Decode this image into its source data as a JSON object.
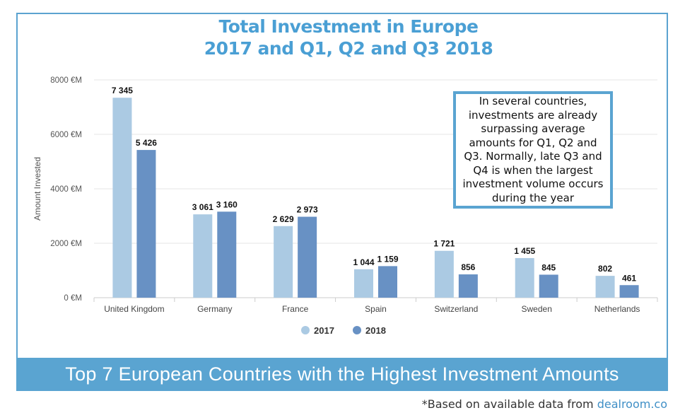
{
  "header": {
    "title_line1": "Total Investment in Europe",
    "title_line2": "2017 and Q1, Q2 and Q3 2018"
  },
  "callout": {
    "text": "In several countries, investments are already surpassing average amounts for Q1, Q2 and Q3. Normally, late Q3 and Q4 is when the largest investment volume occurs during the year"
  },
  "banner": {
    "text": "Top 7 European Countries with the Highest Investment Amounts"
  },
  "footnote": {
    "prefix": "*Based on available data from ",
    "brand": "dealroom.co"
  },
  "colors": {
    "s2017": "#abcae3",
    "s2018": "#6891c4",
    "accent": "#5aa4d1"
  },
  "chart_data": {
    "type": "bar",
    "categories": [
      "United Kingdom",
      "Germany",
      "France",
      "Spain",
      "Switzerland",
      "Sweden",
      "Netherlands"
    ],
    "series": [
      {
        "name": "2017",
        "values": [
          7345,
          3061,
          2629,
          1044,
          1721,
          1455,
          802
        ],
        "labels": [
          "7 345",
          "3 061",
          "2 629",
          "1 044",
          "1 721",
          "1 455",
          "802"
        ]
      },
      {
        "name": "2018",
        "values": [
          5426,
          3160,
          2973,
          1159,
          856,
          845,
          461
        ],
        "labels": [
          "5 426",
          "3 160",
          "2 973",
          "1 159",
          "856",
          "845",
          "461"
        ]
      }
    ],
    "ylabel": "Amount Invested",
    "ylim": [
      0,
      8000
    ],
    "yticks": [
      0,
      2000,
      4000,
      6000,
      8000
    ],
    "ytick_labels": [
      "0 €M",
      "2000 €M",
      "4000 €M",
      "6000 €M",
      "8000 €M"
    ],
    "grid": true,
    "legend": "bottom-center"
  }
}
